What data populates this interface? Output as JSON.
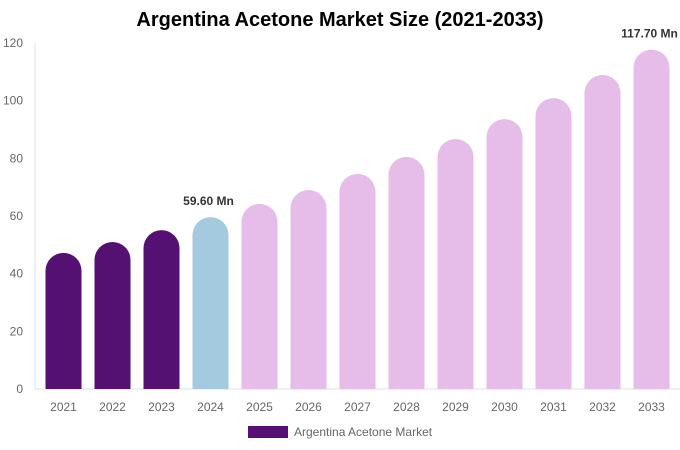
{
  "chart_data": {
    "type": "bar",
    "title": "Argentina Acetone Market Size (2021-2033)",
    "categories": [
      "2021",
      "2022",
      "2023",
      "2024",
      "2025",
      "2026",
      "2027",
      "2028",
      "2029",
      "2030",
      "2031",
      "2032",
      "2033"
    ],
    "series": [
      {
        "name": "Argentina Acetone Market",
        "values": [
          47.2,
          51.0,
          55.1,
          59.6,
          64.2,
          69.0,
          74.6,
          80.5,
          86.7,
          93.6,
          100.9,
          108.9,
          117.7
        ]
      }
    ],
    "bar_colors": [
      "#541171",
      "#541171",
      "#541171",
      "#a3cade",
      "#e6bce8",
      "#e6bce8",
      "#e6bce8",
      "#e6bce8",
      "#e6bce8",
      "#e6bce8",
      "#e6bce8",
      "#e6bce8",
      "#e6bce8"
    ],
    "data_labels": [
      {
        "index": 3,
        "text": "59.60 Mn"
      },
      {
        "index": 12,
        "text": "117.70 Mn"
      }
    ],
    "yticks": [
      0,
      20,
      40,
      60,
      80,
      100,
      120
    ],
    "ylim": [
      0,
      120
    ],
    "xlabel": "",
    "ylabel": "",
    "grid": false,
    "legend": {
      "position": "bottom",
      "color": "#541171"
    }
  }
}
